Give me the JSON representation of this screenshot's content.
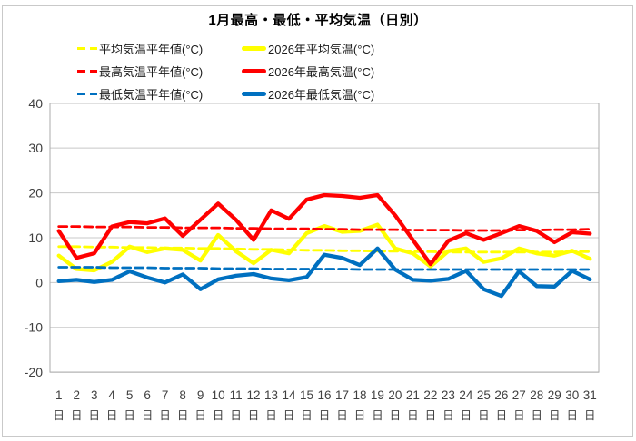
{
  "chart_data": {
    "type": "line",
    "title": "1月最高・最低・平均気温（日別）",
    "x": [
      "1",
      "2",
      "3",
      "4",
      "5",
      "6",
      "7",
      "8",
      "9",
      "10",
      "11",
      "12",
      "13",
      "14",
      "15",
      "16",
      "17",
      "18",
      "19",
      "20",
      "21",
      "22",
      "23",
      "24",
      "25",
      "26",
      "27",
      "28",
      "29",
      "30",
      "31"
    ],
    "x_suffix": "日",
    "ylim": [
      -20,
      40
    ],
    "yticks": [
      40,
      30,
      20,
      10,
      0,
      -10,
      -20
    ],
    "grid": true,
    "legend_position": "top",
    "series": [
      {
        "name": "平均気温平年値(°C)",
        "color": "#FFFF00",
        "style": "dashed",
        "values": [
          8.0,
          8.0,
          7.9,
          7.9,
          7.8,
          7.8,
          7.7,
          7.7,
          7.6,
          7.6,
          7.5,
          7.4,
          7.4,
          7.3,
          7.2,
          7.2,
          7.1,
          7.1,
          7.0,
          7.0,
          6.9,
          6.9,
          6.8,
          6.8,
          6.8,
          6.8,
          6.8,
          6.8,
          6.8,
          6.9,
          6.9
        ]
      },
      {
        "name": "2026年平均気温(°C)",
        "color": "#FFFF00",
        "style": "solid",
        "values": [
          6.0,
          3.0,
          2.7,
          4.6,
          8.0,
          6.8,
          7.6,
          7.3,
          4.9,
          10.6,
          7.0,
          4.3,
          7.3,
          6.5,
          11.0,
          12.6,
          11.3,
          11.5,
          12.9,
          7.6,
          6.5,
          3.6,
          7.0,
          7.6,
          4.6,
          5.4,
          7.6,
          6.5,
          6.0,
          7.1,
          5.3
        ]
      },
      {
        "name": "最高気温平年値(°C)",
        "color": "#FF0000",
        "style": "dashed",
        "values": [
          12.5,
          12.5,
          12.4,
          12.4,
          12.4,
          12.3,
          12.3,
          12.2,
          12.2,
          12.2,
          12.1,
          12.1,
          12.0,
          12.0,
          12.0,
          11.9,
          11.9,
          11.8,
          11.8,
          11.8,
          11.7,
          11.7,
          11.7,
          11.6,
          11.6,
          11.6,
          11.7,
          11.7,
          11.8,
          11.8,
          11.9
        ]
      },
      {
        "name": "2026年最高気温(°C)",
        "color": "#FF0000",
        "style": "solid",
        "values": [
          11.5,
          5.5,
          6.5,
          12.5,
          13.5,
          13.2,
          14.3,
          10.4,
          14.0,
          17.6,
          14.0,
          9.5,
          16.1,
          14.2,
          18.5,
          19.5,
          19.3,
          18.9,
          19.5,
          15.0,
          9.5,
          4.1,
          9.3,
          11.0,
          9.5,
          11.0,
          12.6,
          11.5,
          9.0,
          11.2,
          10.9
        ]
      },
      {
        "name": "最低気温平年値(°C)",
        "color": "#0070C0",
        "style": "dashed",
        "values": [
          3.4,
          3.4,
          3.4,
          3.3,
          3.3,
          3.3,
          3.2,
          3.2,
          3.2,
          3.1,
          3.1,
          3.1,
          3.0,
          3.0,
          3.0,
          3.0,
          3.0,
          2.9,
          2.9,
          2.9,
          2.9,
          2.9,
          2.9,
          2.9,
          2.9,
          2.9,
          2.9,
          2.9,
          2.9,
          2.9,
          2.9
        ]
      },
      {
        "name": "2026年最低気温(°C)",
        "color": "#0070C0",
        "style": "solid",
        "values": [
          0.3,
          0.6,
          0.1,
          0.6,
          2.5,
          1.1,
          0.0,
          1.8,
          -1.5,
          0.7,
          1.5,
          1.9,
          0.9,
          0.5,
          1.2,
          6.2,
          5.5,
          3.9,
          7.6,
          2.9,
          0.6,
          0.4,
          0.8,
          2.6,
          -1.5,
          -3.0,
          2.5,
          -0.8,
          -0.9,
          2.6,
          0.7
        ]
      }
    ],
    "colors": {
      "gridline": "#c8c8c8",
      "frame": "#ababab",
      "axis_text": "#404040"
    }
  }
}
